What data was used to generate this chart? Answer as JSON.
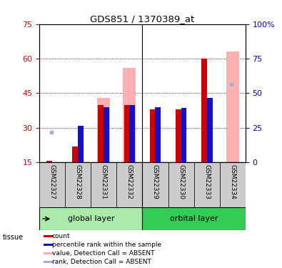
{
  "title": "GDS851 / 1370389_at",
  "samples": [
    "GSM22327",
    "GSM22328",
    "GSM22331",
    "GSM22332",
    "GSM22329",
    "GSM22330",
    "GSM22333",
    "GSM22334"
  ],
  "ylim_left": [
    15,
    75
  ],
  "ylim_right": [
    0,
    100
  ],
  "yticks_left": [
    15,
    30,
    45,
    60,
    75
  ],
  "yticks_right": [
    0,
    25,
    50,
    75,
    100
  ],
  "yticklabels_right": [
    "0",
    "25",
    "50",
    "75",
    "100%"
  ],
  "red_bars": [
    15.5,
    22,
    40,
    40,
    38,
    38,
    60,
    15.0
  ],
  "blue_markers": [
    0,
    31,
    39,
    40,
    39,
    38.5,
    43,
    0
  ],
  "pink_bars": [
    0,
    0,
    43,
    56,
    0,
    0,
    0,
    63
  ],
  "light_blue_markers": [
    28,
    0,
    0,
    0,
    0,
    0,
    0,
    49
  ],
  "colors": {
    "red": "#cc0000",
    "blue": "#1111cc",
    "pink": "#ffb0b0",
    "light_blue": "#aaaadd",
    "green_light": "#aaeaaa",
    "green_dark": "#33cc55",
    "left_axis": "#cc0000",
    "right_axis": "#0000cc",
    "gray_box": "#cccccc"
  },
  "legend": [
    {
      "label": "count",
      "color": "#cc0000"
    },
    {
      "label": "percentile rank within the sample",
      "color": "#1111cc"
    },
    {
      "label": "value, Detection Call = ABSENT",
      "color": "#ffb0b0"
    },
    {
      "label": "rank, Detection Call = ABSENT",
      "color": "#aaaadd"
    }
  ]
}
